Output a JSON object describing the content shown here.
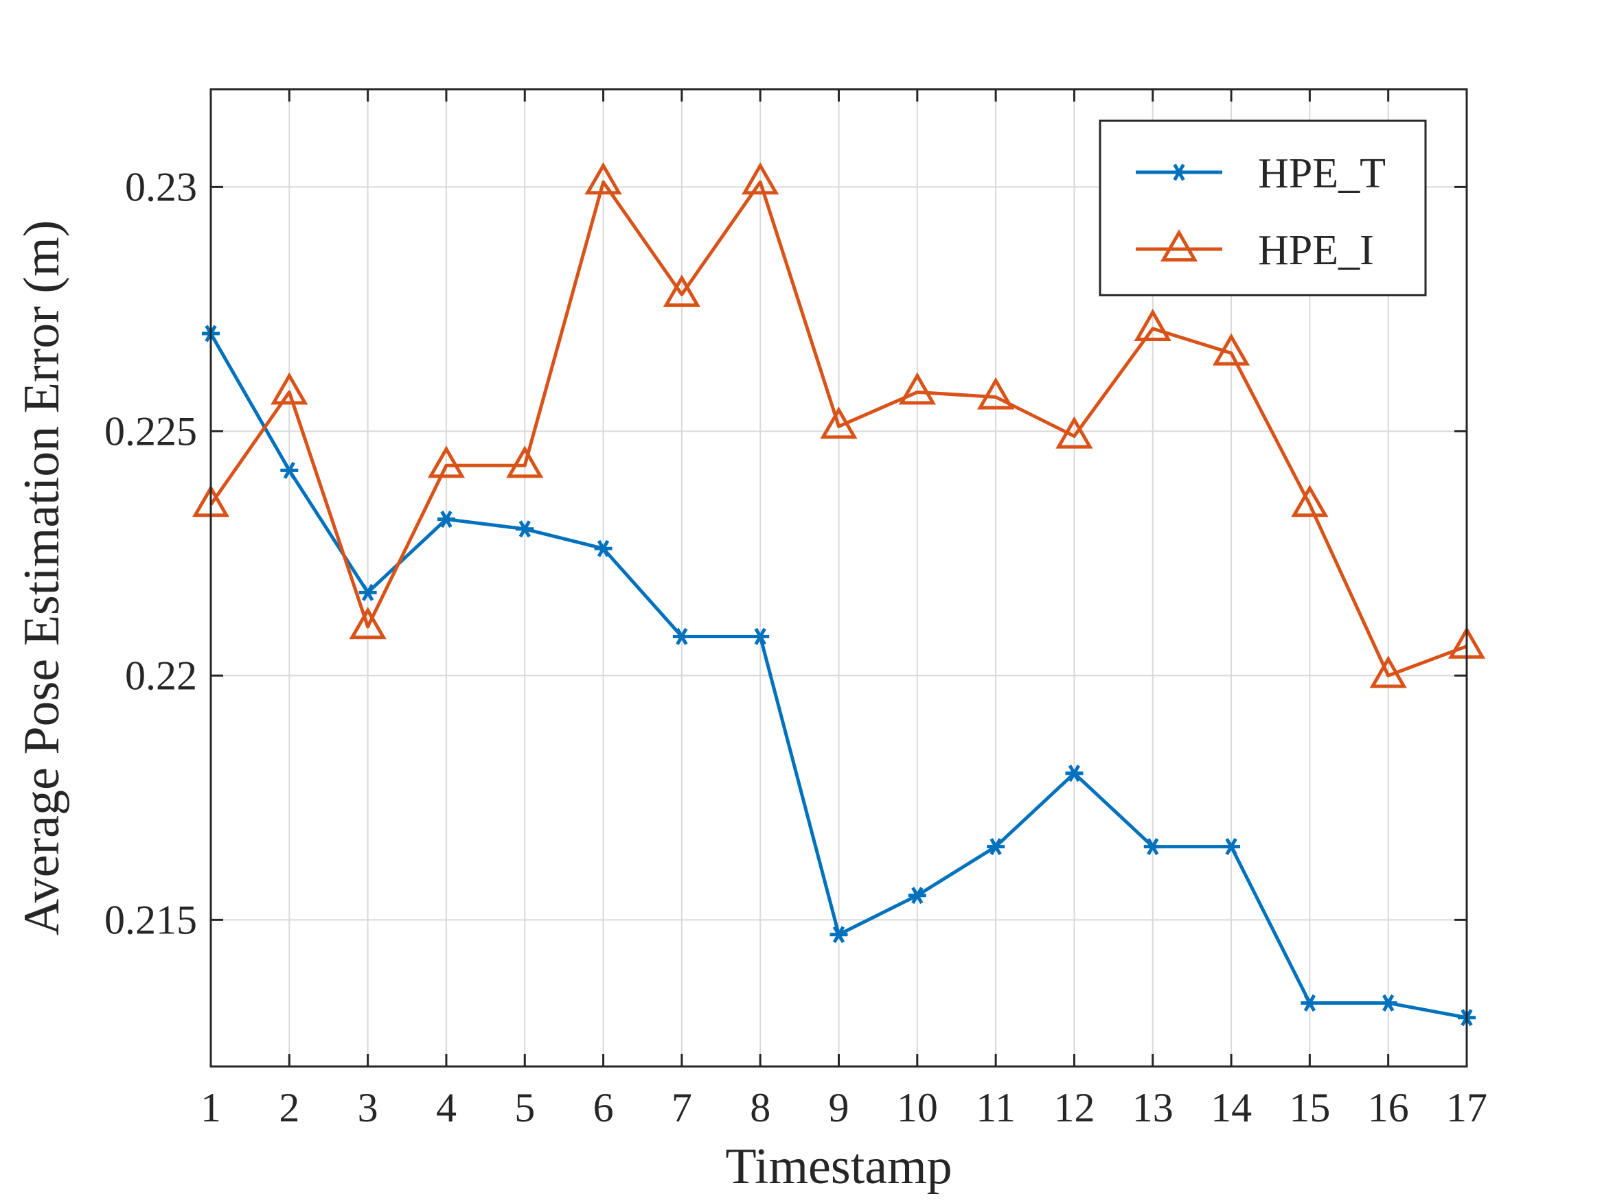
{
  "chart_data": {
    "type": "line",
    "title": "",
    "xlabel": "Timestamp",
    "ylabel": "Average Pose Estimation Error (m)",
    "x": [
      1,
      2,
      3,
      4,
      5,
      6,
      7,
      8,
      9,
      10,
      11,
      12,
      13,
      14,
      15,
      16,
      17
    ],
    "xlim": [
      1,
      17
    ],
    "ylim": [
      0.212,
      0.232
    ],
    "x_ticks": [
      1,
      2,
      3,
      4,
      5,
      6,
      7,
      8,
      9,
      10,
      11,
      12,
      13,
      14,
      15,
      16,
      17
    ],
    "y_ticks": [
      0.215,
      0.22,
      0.225,
      0.23
    ],
    "x_tick_labels": [
      "1",
      "2",
      "3",
      "4",
      "5",
      "6",
      "7",
      "8",
      "9",
      "10",
      "11",
      "12",
      "13",
      "14",
      "15",
      "16",
      "17"
    ],
    "y_tick_labels": [
      "0.215",
      "0.22",
      "0.225",
      "0.23"
    ],
    "grid": true,
    "legend_position": "top-right",
    "series": [
      {
        "name": "HPE_T",
        "marker": "asterisk",
        "color": "#0072BD",
        "values": [
          0.227,
          0.2242,
          0.2217,
          0.2232,
          0.223,
          0.2226,
          0.2208,
          0.2208,
          0.2147,
          0.2155,
          0.2165,
          0.218,
          0.2165,
          0.2165,
          0.2133,
          0.2133,
          0.213
        ]
      },
      {
        "name": "HPE_I",
        "marker": "triangle",
        "color": "#D95319",
        "values": [
          0.2235,
          0.2258,
          0.221,
          0.2243,
          0.2243,
          0.2301,
          0.2278,
          0.2301,
          0.2251,
          0.2258,
          0.2257,
          0.2249,
          0.2271,
          0.2266,
          0.2235,
          0.22,
          0.2206
        ]
      }
    ]
  }
}
